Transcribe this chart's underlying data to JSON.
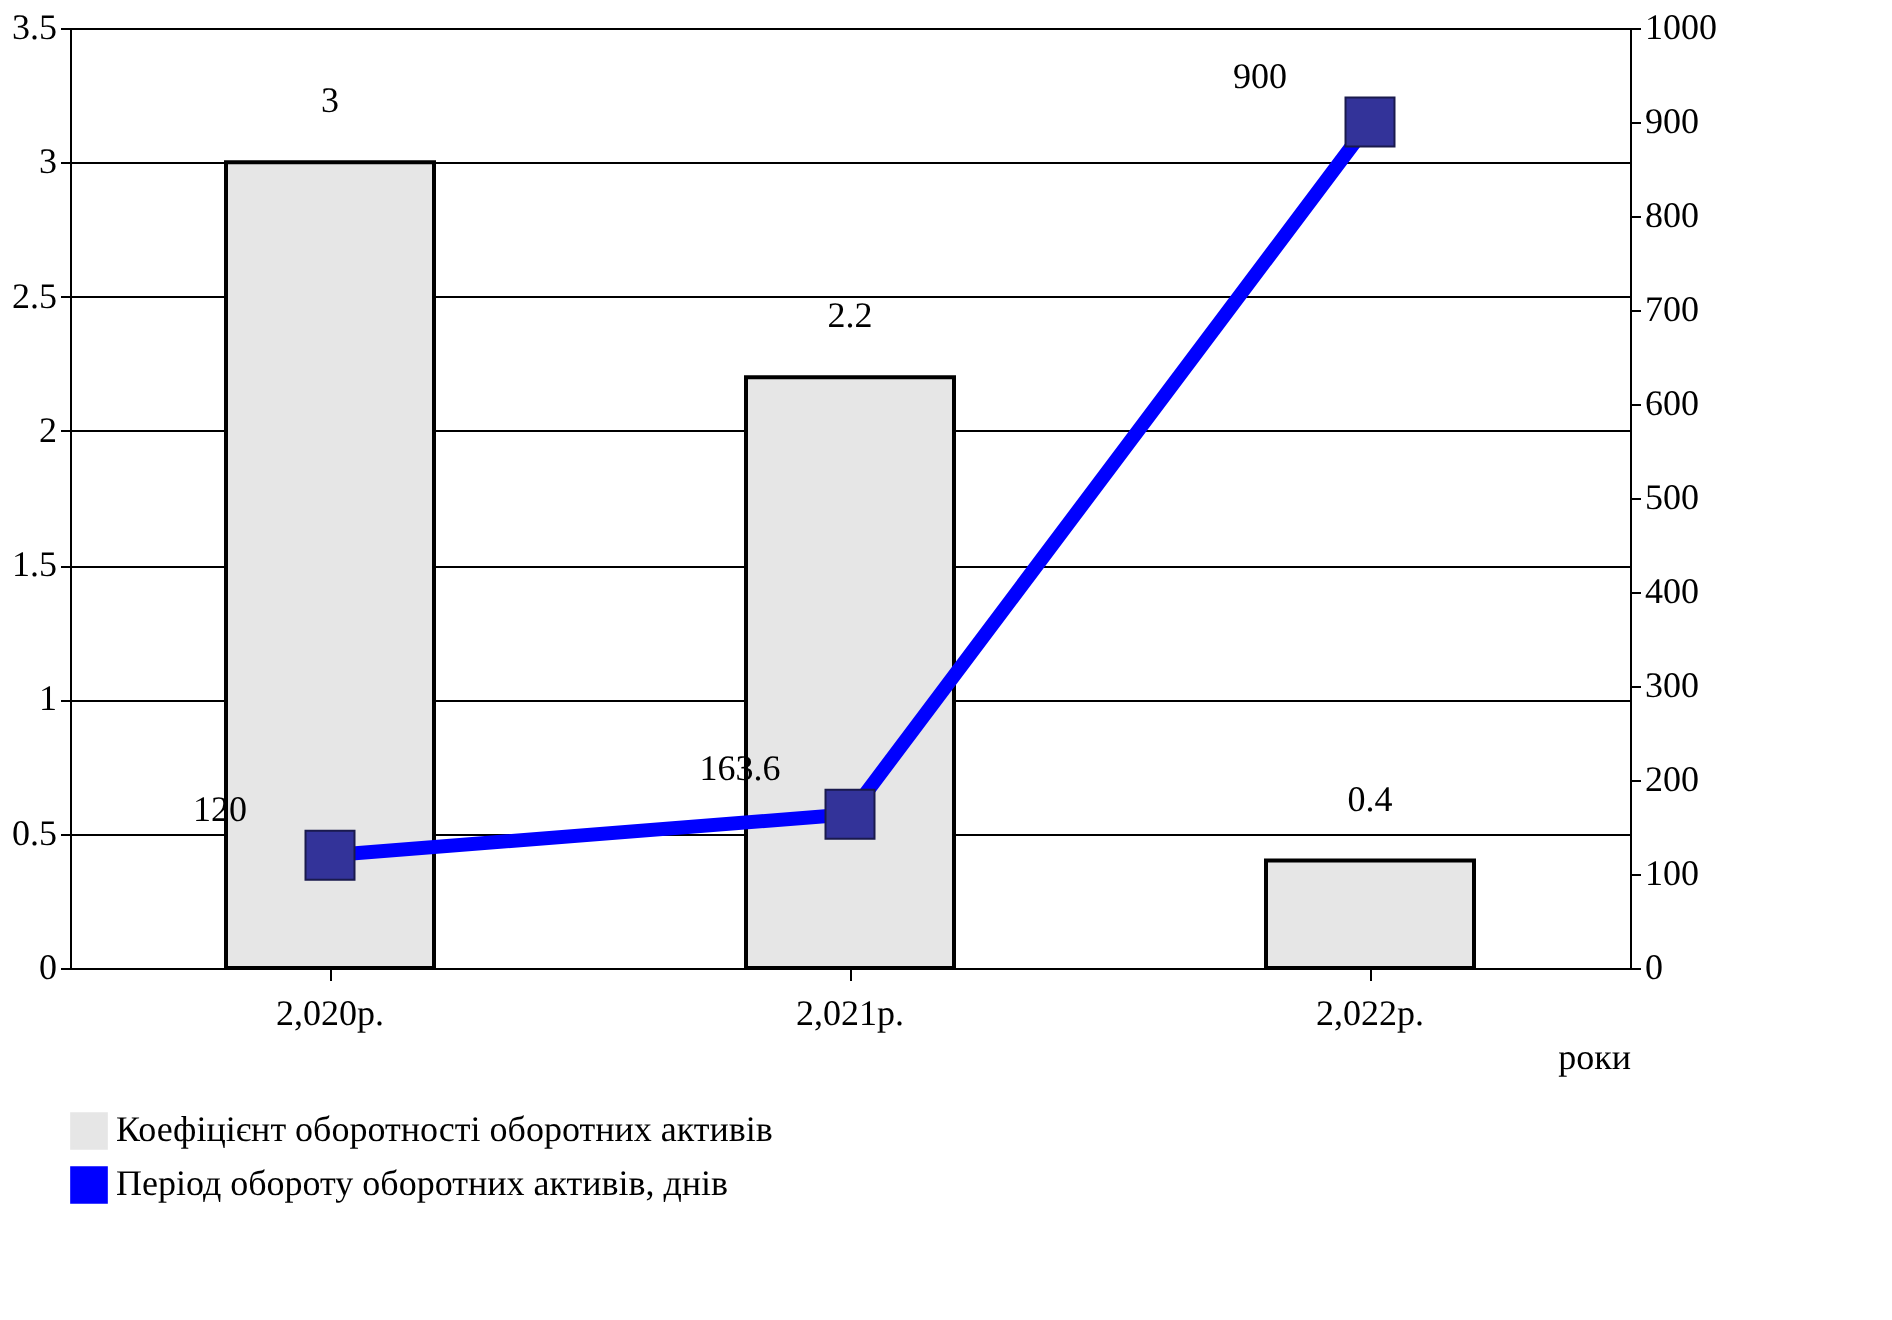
{
  "chart_data": {
    "type": "bar",
    "categories": [
      "2,020р.",
      "2,021р.",
      "2,022р."
    ],
    "xlabel": "роки",
    "series": [
      {
        "name": "Коефіцієнт оборотності оборотних активів",
        "color": "#e6e6e6",
        "values": [
          3,
          2.2,
          0.4
        ]
      },
      {
        "name": "Період обороту оборотних активів, днів",
        "type": "line",
        "axis": "y2",
        "color": "#0000ff",
        "values": [
          120,
          163.6,
          900
        ]
      }
    ],
    "ylim": [
      0,
      3.5
    ],
    "yticks": [
      0,
      0.5,
      1,
      1.5,
      2,
      2.5,
      3,
      3.5
    ],
    "y2lim": [
      0,
      1000
    ],
    "y2ticks": [
      0,
      100,
      200,
      300,
      400,
      500,
      600,
      700,
      800,
      900,
      1000
    ],
    "grid": "y",
    "legend": "bottom",
    "data_labels": true,
    "marker": "square",
    "line_style": "solid"
  }
}
